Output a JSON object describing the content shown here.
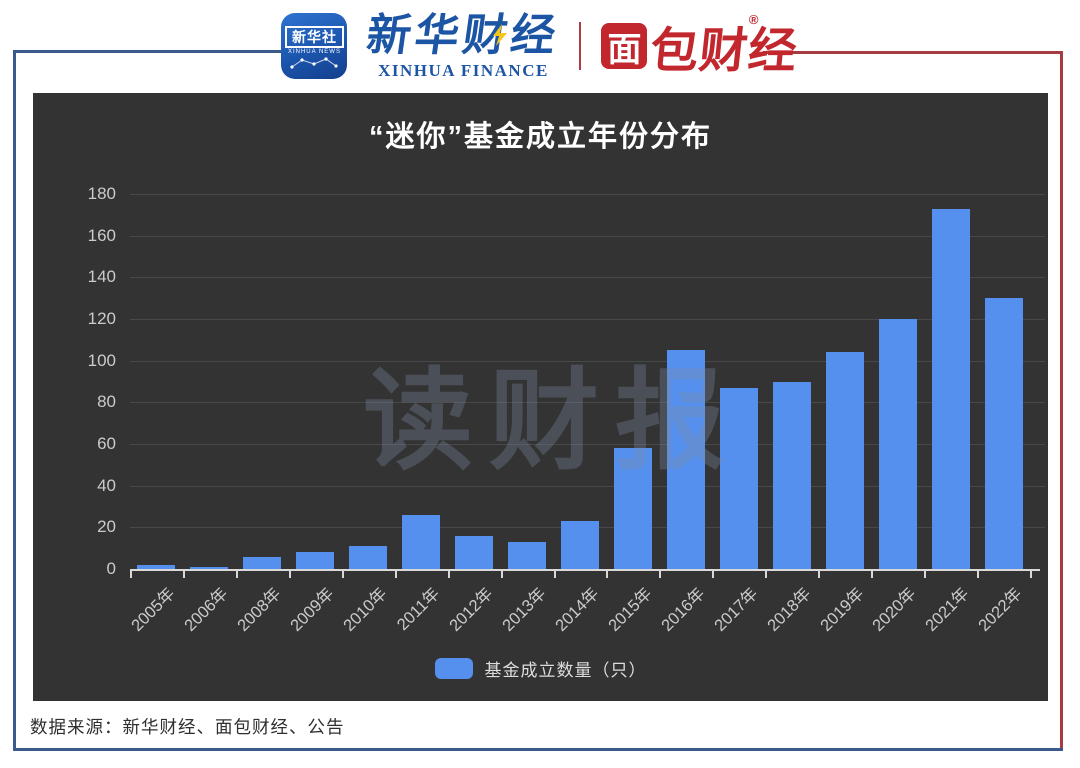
{
  "header": {
    "xinhua_app_icon": {
      "title": "新华社",
      "subtitle": "XINHUA NEWS"
    },
    "xinhua_finance": {
      "cn": "新华财经",
      "en": "XINHUA FINANCE"
    },
    "bread_finance": {
      "box_char": "面",
      "text": "包财经",
      "reg_mark": "®"
    }
  },
  "chart_data": {
    "type": "bar",
    "title": "“迷你”基金成立年份分布",
    "categories": [
      "2005年",
      "2006年",
      "2008年",
      "2009年",
      "2010年",
      "2011年",
      "2012年",
      "2013年",
      "2014年",
      "2015年",
      "2016年",
      "2017年",
      "2018年",
      "2019年",
      "2020年",
      "2021年",
      "2022年"
    ],
    "values": [
      2,
      1,
      6,
      8,
      11,
      26,
      16,
      13,
      23,
      58,
      105,
      87,
      90,
      104,
      120,
      173,
      130
    ],
    "ylim": [
      0,
      180
    ],
    "ytick_step": 20,
    "xlabel": "",
    "ylabel": "",
    "grid": true,
    "legend": {
      "label": "基金成立数量（只）",
      "position": "bottom"
    },
    "watermark": "读财报",
    "colors": {
      "bar": "#5590ee",
      "panel_bg": "#333333"
    }
  },
  "footer": {
    "source": "数据来源：新华财经、面包财经、公告"
  },
  "colors": {
    "frame_blue": "#3a5a8c",
    "frame_red": "#a83b42",
    "xinhua_blue": "#1d55a5",
    "bread_red": "#c1272d"
  }
}
